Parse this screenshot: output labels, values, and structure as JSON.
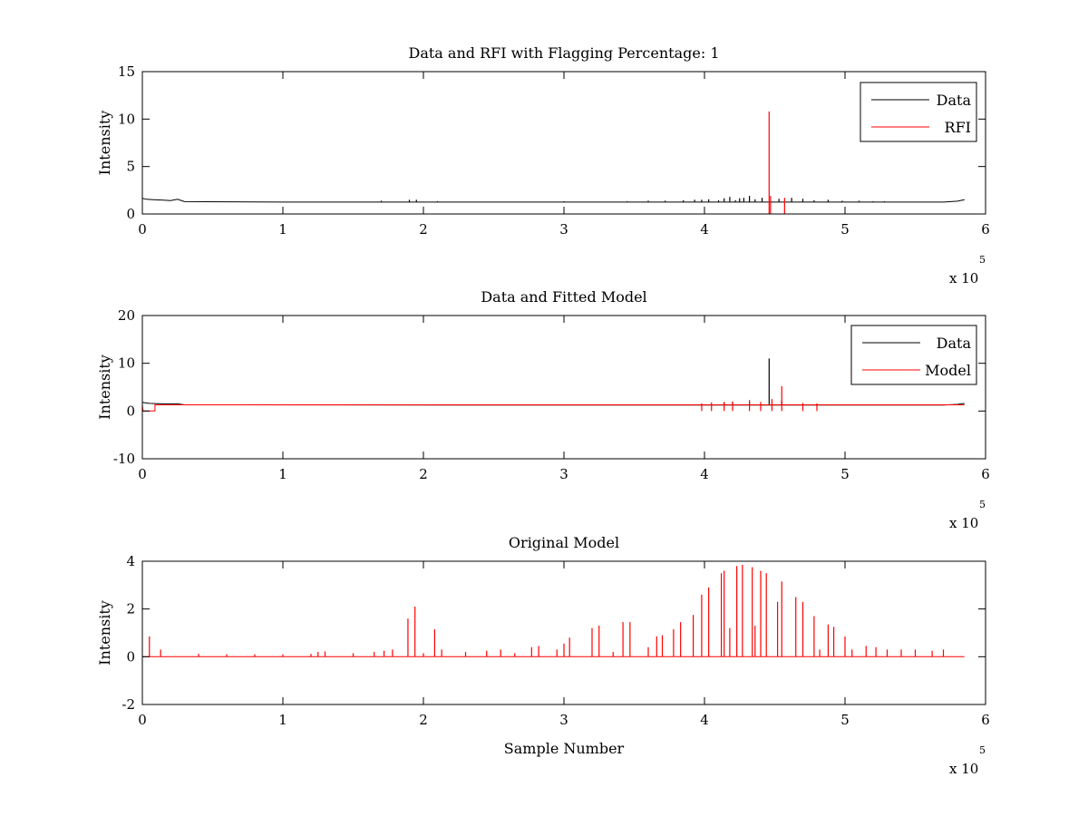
{
  "chart_data": [
    {
      "type": "line",
      "title": "Data and RFI with Flagging Percentage: 1",
      "xlabel": "",
      "ylabel": "Intensity",
      "xlim": [
        0,
        600000
      ],
      "ylim": [
        0,
        15
      ],
      "xticks": [
        "0",
        "1",
        "2",
        "3",
        "4",
        "5",
        "6"
      ],
      "yticks": [
        "0",
        "5",
        "10",
        "15"
      ],
      "x_exponent_label": "x 10",
      "x_exponent_power": "5",
      "grid": false,
      "legend_position": "top-right",
      "series": [
        {
          "name": "Data",
          "color": "#000000",
          "baseline": [
            [
              0,
              1.65
            ],
            [
              3000,
              1.55
            ],
            [
              8000,
              1.5
            ],
            [
              15000,
              1.45
            ],
            [
              20000,
              1.4
            ],
            [
              25000,
              1.55
            ],
            [
              30000,
              1.3
            ],
            [
              100000,
              1.25
            ],
            [
              300000,
              1.25
            ],
            [
              500000,
              1.25
            ],
            [
              570000,
              1.25
            ],
            [
              580000,
              1.35
            ],
            [
              585000,
              1.5
            ]
          ],
          "spikes": [
            [
              170000,
              1.4
            ],
            [
              190000,
              1.5
            ],
            [
              195000,
              1.5
            ],
            [
              210000,
              1.35
            ],
            [
              255000,
              1.3
            ],
            [
              300000,
              1.35
            ],
            [
              345000,
              1.35
            ],
            [
              360000,
              1.4
            ],
            [
              372000,
              1.4
            ],
            [
              385000,
              1.45
            ],
            [
              393000,
              1.5
            ],
            [
              398000,
              1.5
            ],
            [
              403000,
              1.55
            ],
            [
              410000,
              1.45
            ],
            [
              414000,
              1.65
            ],
            [
              418000,
              1.8
            ],
            [
              422000,
              1.45
            ],
            [
              425000,
              1.65
            ],
            [
              428000,
              1.7
            ],
            [
              432000,
              1.9
            ],
            [
              436000,
              1.55
            ],
            [
              441000,
              1.7
            ],
            [
              453000,
              1.6
            ],
            [
              462000,
              1.7
            ],
            [
              470000,
              1.6
            ],
            [
              478000,
              1.45
            ],
            [
              488000,
              1.5
            ],
            [
              498000,
              1.4
            ],
            [
              510000,
              1.4
            ],
            [
              520000,
              1.35
            ],
            [
              528000,
              1.35
            ]
          ]
        },
        {
          "name": "RFI",
          "color": "#ff0000",
          "spikes": [
            [
              446000,
              10.8
            ],
            [
              447000,
              1.9
            ],
            [
              457000,
              1.7
            ]
          ]
        }
      ]
    },
    {
      "type": "line",
      "title": "Data and Fitted Model",
      "xlabel": "",
      "ylabel": "Intensity",
      "xlim": [
        0,
        600000
      ],
      "ylim": [
        -10,
        20
      ],
      "xticks": [
        "0",
        "1",
        "2",
        "3",
        "4",
        "5",
        "6"
      ],
      "yticks": [
        "-10",
        "0",
        "10",
        "20"
      ],
      "x_exponent_label": "x 10",
      "x_exponent_power": "5",
      "grid": false,
      "legend_position": "top-right",
      "series": [
        {
          "name": "Data",
          "color": "#000000",
          "baseline": [
            [
              0,
              1.8
            ],
            [
              5000,
              1.6
            ],
            [
              15000,
              1.5
            ],
            [
              25000,
              1.5
            ],
            [
              30000,
              1.3
            ],
            [
              300000,
              1.25
            ],
            [
              570000,
              1.25
            ],
            [
              580000,
              1.4
            ],
            [
              585000,
              1.6
            ]
          ],
          "spikes": [
            [
              446000,
              11.0
            ],
            [
              420000,
              1.9
            ],
            [
              432000,
              2.0
            ],
            [
              455000,
              2.2
            ],
            [
              414000,
              1.8
            ]
          ]
        },
        {
          "name": "Model",
          "color": "#ff0000",
          "baseline": [
            [
              0,
              1.3
            ],
            [
              500,
              0.0
            ],
            [
              9000,
              0.0
            ],
            [
              9000,
              1.3
            ],
            [
              585000,
              1.3
            ]
          ],
          "spikes": [
            [
              455000,
              5.2
            ],
            [
              448000,
              2.5
            ],
            [
              432000,
              2.3
            ],
            [
              420000,
              2.0
            ],
            [
              414000,
              1.9
            ],
            [
              405000,
              1.8
            ],
            [
              398000,
              1.6
            ],
            [
              440000,
              1.9
            ],
            [
              470000,
              1.7
            ],
            [
              480000,
              1.6
            ]
          ]
        }
      ]
    },
    {
      "type": "line",
      "title": "Original Model",
      "xlabel": "Sample Number",
      "ylabel": "Intensity",
      "xlim": [
        0,
        600000
      ],
      "ylim": [
        -2,
        4
      ],
      "xticks": [
        "0",
        "1",
        "2",
        "3",
        "4",
        "5",
        "6"
      ],
      "yticks": [
        "-2",
        "0",
        "2",
        "4"
      ],
      "x_exponent_label": "x 10",
      "x_exponent_power": "5",
      "grid": false,
      "legend_position": "none",
      "series": [
        {
          "name": "",
          "color": "#ff0000",
          "baseline": [
            [
              0,
              0
            ],
            [
              585000,
              0
            ]
          ],
          "spikes": [
            [
              5000,
              0.85
            ],
            [
              13000,
              0.3
            ],
            [
              40000,
              0.12
            ],
            [
              60000,
              0.1
            ],
            [
              80000,
              0.1
            ],
            [
              100000,
              0.1
            ],
            [
              120000,
              0.12
            ],
            [
              125000,
              0.2
            ],
            [
              130000,
              0.22
            ],
            [
              150000,
              0.15
            ],
            [
              165000,
              0.2
            ],
            [
              172000,
              0.25
            ],
            [
              178000,
              0.3
            ],
            [
              189000,
              1.6
            ],
            [
              194000,
              2.1
            ],
            [
              200000,
              0.15
            ],
            [
              208000,
              1.15
            ],
            [
              213000,
              0.3
            ],
            [
              230000,
              0.2
            ],
            [
              245000,
              0.25
            ],
            [
              255000,
              0.3
            ],
            [
              265000,
              0.15
            ],
            [
              277000,
              0.4
            ],
            [
              282000,
              0.45
            ],
            [
              295000,
              0.3
            ],
            [
              300000,
              0.55
            ],
            [
              304000,
              0.8
            ],
            [
              320000,
              1.2
            ],
            [
              325000,
              1.3
            ],
            [
              335000,
              0.2
            ],
            [
              342000,
              1.45
            ],
            [
              347000,
              1.45
            ],
            [
              360000,
              0.4
            ],
            [
              366000,
              0.85
            ],
            [
              370000,
              0.9
            ],
            [
              378000,
              1.15
            ],
            [
              383000,
              1.45
            ],
            [
              392000,
              1.75
            ],
            [
              398000,
              2.6
            ],
            [
              403000,
              2.9
            ],
            [
              412000,
              3.5
            ],
            [
              414000,
              3.6
            ],
            [
              418000,
              1.2
            ],
            [
              423000,
              3.8
            ],
            [
              427000,
              3.85
            ],
            [
              434000,
              3.75
            ],
            [
              436000,
              1.3
            ],
            [
              440000,
              3.6
            ],
            [
              444000,
              3.5
            ],
            [
              452000,
              2.3
            ],
            [
              455000,
              3.15
            ],
            [
              465000,
              2.5
            ],
            [
              470000,
              2.3
            ],
            [
              478000,
              1.7
            ],
            [
              482000,
              0.3
            ],
            [
              488000,
              1.35
            ],
            [
              492000,
              1.25
            ],
            [
              500000,
              0.85
            ],
            [
              505000,
              0.3
            ],
            [
              515000,
              0.45
            ],
            [
              522000,
              0.4
            ],
            [
              530000,
              0.3
            ],
            [
              540000,
              0.3
            ],
            [
              550000,
              0.3
            ],
            [
              562000,
              0.25
            ],
            [
              570000,
              0.3
            ]
          ]
        }
      ]
    }
  ]
}
